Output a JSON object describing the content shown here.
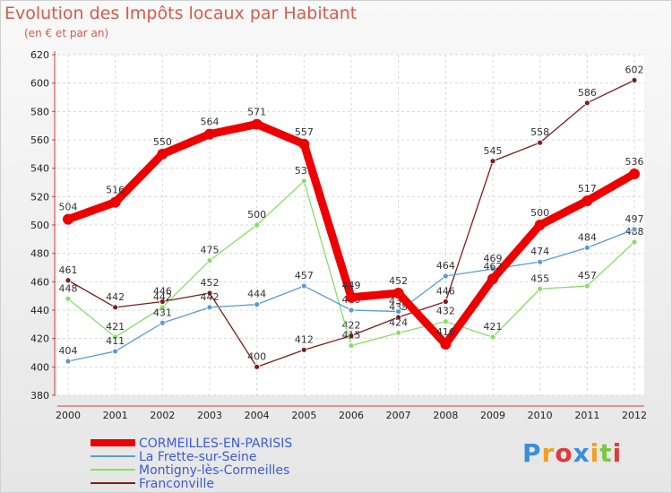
{
  "chart_data": {
    "type": "line",
    "title": "Evolution des Impôts locaux par Habitant",
    "subtitle": "(en € et par an)",
    "categories": [
      "2000",
      "2001",
      "2002",
      "2003",
      "2004",
      "2005",
      "2006",
      "2007",
      "2008",
      "2009",
      "2010",
      "2011",
      "2012"
    ],
    "ylim": [
      380,
      620
    ],
    "yticks": [
      380,
      400,
      420,
      440,
      460,
      480,
      500,
      520,
      540,
      560,
      580,
      600,
      620
    ],
    "grid": true,
    "series": [
      {
        "name": "Franconville",
        "color": "#7a1f1f",
        "values": [
          461,
          442,
          446,
          452,
          400,
          412,
          422,
          435,
          446,
          545,
          558,
          586,
          602
        ]
      },
      {
        "name": "Montigny-lès-Cormeilles",
        "color": "#88dd66",
        "values": [
          448,
          421,
          442,
          475,
          500,
          531,
          415,
          424,
          432,
          421,
          455,
          457,
          488
        ]
      },
      {
        "name": "La Frette-sur-Seine",
        "color": "#5b9bd5",
        "values": [
          404,
          411,
          431,
          442,
          444,
          457,
          440,
          439,
          464,
          469,
          474,
          484,
          497
        ]
      },
      {
        "name": "CORMEILLES-EN-PARISIS",
        "color": "#ee0000",
        "values": [
          504,
          516,
          550,
          564,
          571,
          557,
          449,
          452,
          416,
          462,
          500,
          517,
          536
        ]
      }
    ],
    "legend": [
      {
        "name": "CORMEILLES-EN-PARISIS",
        "color": "#ee0000"
      },
      {
        "name": "La Frette-sur-Seine",
        "color": "#5b9bd5"
      },
      {
        "name": "Montigny-lès-Cormeilles",
        "color": "#88dd66"
      },
      {
        "name": "Franconville",
        "color": "#7a1f1f"
      }
    ]
  },
  "logo": {
    "text": "Proxiti",
    "letters": [
      "P",
      "r",
      "o",
      "x",
      "i",
      "t",
      "i"
    ],
    "colors": [
      "#3a8fd8",
      "#f0a020",
      "#e23a3a",
      "#3a8fd8",
      "#f0a020",
      "#7ac943",
      "#e23a3a"
    ]
  }
}
